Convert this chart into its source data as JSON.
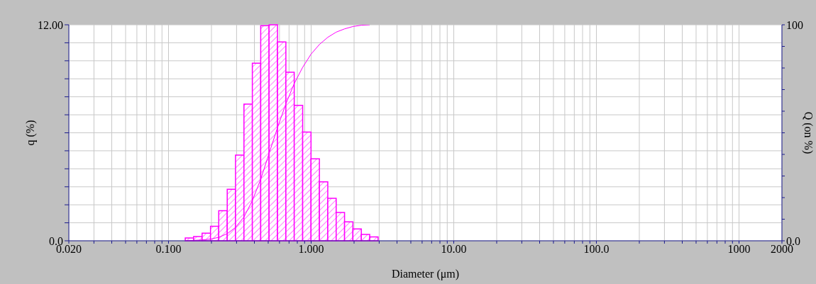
{
  "chart_data": {
    "type": "histogram",
    "xlabel": "Diameter (μm)",
    "ylabel": "q (%)",
    "y2label": "Q (on %)",
    "bins": [
      0.131,
      0.15,
      0.172,
      0.197,
      0.225,
      0.258,
      0.295,
      0.338,
      0.387,
      0.443,
      0.507,
      0.581,
      0.665,
      0.761,
      0.872,
      0.998,
      1.143,
      1.308,
      1.498,
      1.715,
      1.963,
      2.248,
      2.574,
      2.947
    ],
    "values": [
      0.16,
      0.24,
      0.42,
      0.81,
      1.67,
      2.86,
      4.76,
      7.59,
      9.87,
      11.95,
      12.0,
      11.05,
      9.36,
      7.52,
      6.04,
      4.55,
      3.28,
      2.36,
      1.57,
      1.05,
      0.66,
      0.35,
      0.22
    ],
    "color": "#ff00ff",
    "series": [
      {
        "type": "line",
        "axis": "y2",
        "color": "#ff00ff",
        "x": [
          0.131,
          0.15,
          0.172,
          0.197,
          0.225,
          0.258,
          0.295,
          0.338,
          0.387,
          0.443,
          0.507,
          0.581,
          0.665,
          0.761,
          0.872,
          0.998,
          1.143,
          1.308,
          1.498,
          1.715,
          1.963,
          2.248,
          2.574
        ],
        "values": [
          0,
          0.2,
          0.4,
          0.8,
          1.6,
          3.3,
          6.2,
          11.0,
          18.6,
          28.5,
          40.4,
          52.4,
          63.4,
          72.8,
          80.3,
          86.4,
          90.9,
          94.2,
          96.6,
          98.1,
          99.2,
          99.8,
          100
        ]
      }
    ],
    "log": "x",
    "xlim": [
      0.02,
      2000
    ],
    "ylim": [
      0,
      12
    ],
    "y2lim": [
      0,
      100
    ],
    "xticks": [
      {
        "value": 0.02,
        "label": "0.020"
      },
      {
        "value": 0.03,
        "label": null
      },
      {
        "value": 0.04,
        "label": null
      },
      {
        "value": 0.05,
        "label": null
      },
      {
        "value": 0.06,
        "label": null
      },
      {
        "value": 0.07,
        "label": null
      },
      {
        "value": 0.08,
        "label": null
      },
      {
        "value": 0.09,
        "label": null
      },
      {
        "value": 0.1,
        "label": "0.100"
      },
      {
        "value": 0.2,
        "label": null
      },
      {
        "value": 0.3,
        "label": null
      },
      {
        "value": 0.4,
        "label": null
      },
      {
        "value": 0.5,
        "label": null
      },
      {
        "value": 0.6,
        "label": null
      },
      {
        "value": 0.7,
        "label": null
      },
      {
        "value": 0.8,
        "label": null
      },
      {
        "value": 0.9,
        "label": null
      },
      {
        "value": 1,
        "label": "1.000"
      },
      {
        "value": 2,
        "label": null
      },
      {
        "value": 3,
        "label": null
      },
      {
        "value": 4,
        "label": null
      },
      {
        "value": 5,
        "label": null
      },
      {
        "value": 6,
        "label": null
      },
      {
        "value": 7,
        "label": null
      },
      {
        "value": 8,
        "label": null
      },
      {
        "value": 9,
        "label": null
      },
      {
        "value": 10,
        "label": "10.00"
      },
      {
        "value": 20,
        "label": null
      },
      {
        "value": 30,
        "label": null
      },
      {
        "value": 40,
        "label": null
      },
      {
        "value": 50,
        "label": null
      },
      {
        "value": 60,
        "label": null
      },
      {
        "value": 70,
        "label": null
      },
      {
        "value": 80,
        "label": null
      },
      {
        "value": 90,
        "label": null
      },
      {
        "value": 100,
        "label": "100.0"
      },
      {
        "value": 200,
        "label": null
      },
      {
        "value": 300,
        "label": null
      },
      {
        "value": 400,
        "label": null
      },
      {
        "value": 500,
        "label": null
      },
      {
        "value": 600,
        "label": null
      },
      {
        "value": 700,
        "label": null
      },
      {
        "value": 800,
        "label": null
      },
      {
        "value": 900,
        "label": null
      },
      1000,
      2000
    ],
    "yticks": [
      {
        "value": 0,
        "label": "0.0"
      },
      {
        "value": 1,
        "label": null
      },
      {
        "value": 2,
        "label": null
      },
      {
        "value": 3,
        "label": null
      },
      {
        "value": 4,
        "label": null
      },
      {
        "value": 5,
        "label": null
      },
      {
        "value": 6,
        "label": null
      },
      {
        "value": 7,
        "label": null
      },
      {
        "value": 8,
        "label": null
      },
      {
        "value": 9,
        "label": null
      },
      {
        "value": 10,
        "label": null
      },
      {
        "value": 11,
        "label": null
      },
      {
        "value": 12,
        "label": "12.00"
      }
    ],
    "y2ticks": [
      {
        "value": 0,
        "label": "0.0"
      },
      {
        "value": 10,
        "label": null
      },
      {
        "value": 20,
        "label": null
      },
      {
        "value": 30,
        "label": null
      },
      {
        "value": 40,
        "label": null
      },
      {
        "value": 50,
        "label": null
      },
      {
        "value": 60,
        "label": null
      },
      {
        "value": 70,
        "label": null
      },
      {
        "value": 80,
        "label": null
      },
      {
        "value": 90,
        "label": null
      },
      100
    ],
    "grid": true,
    "marker": "none",
    "line_style": "solid"
  }
}
